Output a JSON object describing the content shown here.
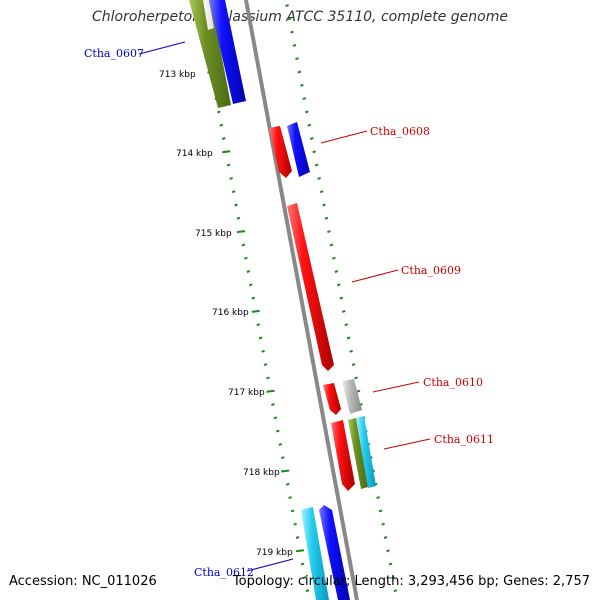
{
  "title": "Chloroherpeton thalassium ATCC 35110, complete genome",
  "footer": {
    "accession": "Accession: NC_011026",
    "summary": "Topology: circular; Length: 3,293,456 bp; Genes: 2,757"
  },
  "colors": {
    "backbone": "#8a8a8a",
    "tick": "#1a8a1a",
    "label_blue": "#0000cc",
    "label_red": "#cc0000",
    "red": "#ee1111",
    "blue": "#1111ee",
    "olive": "#6b8e23",
    "cyan": "#22ccee",
    "grey": "#bbbbbb"
  },
  "kbp_labels": [
    "713 kbp",
    "714 kbp",
    "715 kbp",
    "716 kbp",
    "717 kbp",
    "718 kbp",
    "719 kbp"
  ],
  "gene_labels": [
    {
      "text": "Ctha_0607",
      "color": "#0000cc"
    },
    {
      "text": "Ctha_0608",
      "color": "#cc0000"
    },
    {
      "text": "Ctha_0609",
      "color": "#cc0000"
    },
    {
      "text": "Ctha_0610",
      "color": "#cc0000"
    },
    {
      "text": "Ctha_0611",
      "color": "#cc0000"
    },
    {
      "text": "Ctha_0612",
      "color": "#0000cc"
    }
  ]
}
